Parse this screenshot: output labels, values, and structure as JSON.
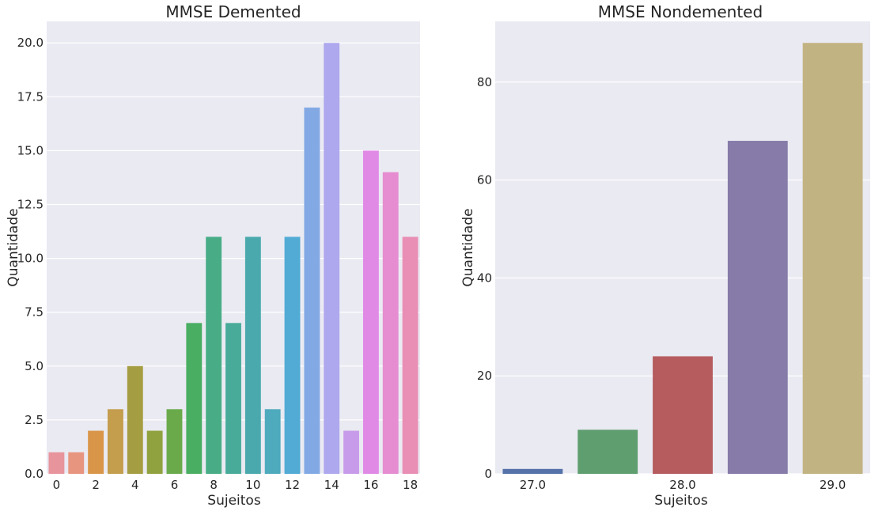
{
  "chart_data": [
    {
      "type": "bar",
      "title": "MMSE Demented",
      "xlabel": "Sujeitos",
      "ylabel": "Quantidade",
      "categories": [
        "0",
        "1",
        "2",
        "3",
        "4",
        "5",
        "6",
        "7",
        "8",
        "9",
        "10",
        "11",
        "12",
        "13",
        "14",
        "15",
        "16",
        "17",
        "18"
      ],
      "xtick_labels": [
        "0",
        "2",
        "4",
        "6",
        "8",
        "10",
        "12",
        "14",
        "16",
        "18"
      ],
      "values": [
        1,
        1,
        2,
        3,
        5,
        2,
        3,
        7,
        11,
        7,
        11,
        3,
        11,
        17,
        20,
        2,
        15,
        14,
        11
      ],
      "ylim": [
        0,
        21
      ],
      "yticks": [
        0,
        2.5,
        5,
        7.5,
        10,
        12.5,
        15,
        17.5,
        20
      ],
      "ytick_labels": [
        "0.0",
        "2.5",
        "5.0",
        "7.5",
        "10.0",
        "12.5",
        "15.0",
        "17.5",
        "20.0"
      ],
      "colors": [
        "#e8949c",
        "#e8957f",
        "#d99649",
        "#c49d4d",
        "#a59d41",
        "#90a23f",
        "#6aaa4b",
        "#4aae62",
        "#48ad86",
        "#48ab9a",
        "#4aa9ac",
        "#4eaabd",
        "#52abd4",
        "#83a9e4",
        "#aea8ee",
        "#c89bea",
        "#e08ae6",
        "#e68cd0",
        "#e98eb5"
      ],
      "grid": true
    },
    {
      "type": "bar",
      "title": "MMSE Nondemented",
      "xlabel": "Sujeitos",
      "ylabel": "Quantidade",
      "categories": [
        "27.0",
        "",
        "28.0",
        "",
        "29.0"
      ],
      "values": [
        1,
        9,
        24,
        68,
        88
      ],
      "ylim": [
        0,
        92.4
      ],
      "yticks": [
        0,
        20,
        40,
        60,
        80
      ],
      "ytick_labels": [
        "0",
        "20",
        "40",
        "60",
        "80"
      ],
      "colors": [
        "#5572a9",
        "#5f9e6e",
        "#b65c5f",
        "#867ba9",
        "#c2b382"
      ],
      "grid": true
    }
  ]
}
